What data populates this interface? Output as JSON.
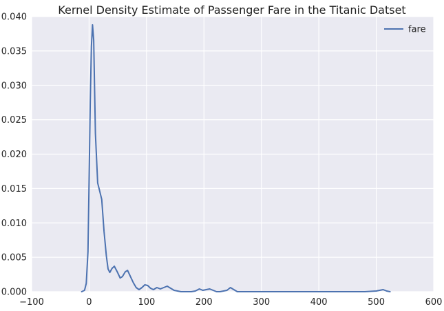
{
  "chart_data": {
    "type": "line",
    "title": "Kernel Density Estimate of Passenger Fare in the Titanic Datset",
    "xlabel": "",
    "ylabel": "",
    "xlim": [
      -100,
      600
    ],
    "ylim": [
      0,
      0.04
    ],
    "xticks": [
      -100,
      0,
      100,
      200,
      300,
      400,
      500,
      600
    ],
    "xtick_labels": [
      "−100",
      "0",
      "100",
      "200",
      "300",
      "400",
      "500",
      "600"
    ],
    "yticks": [
      0,
      0.005,
      0.01,
      0.015,
      0.02,
      0.025,
      0.03,
      0.035,
      0.04
    ],
    "ytick_labels": [
      "0.000",
      "0.005",
      "0.010",
      "0.015",
      "0.020",
      "0.025",
      "0.030",
      "0.035",
      "0.040"
    ],
    "grid": true,
    "legend_position": "top-right",
    "series": [
      {
        "name": "fare",
        "color": "#4c72b0",
        "x": [
          -13,
          -8,
          -5,
          -2,
          0,
          2,
          4,
          6,
          8,
          11,
          15,
          18,
          22,
          26,
          30,
          33,
          36,
          40,
          44,
          49,
          54,
          58,
          63,
          67,
          72,
          77,
          82,
          87,
          92,
          97,
          102,
          107,
          112,
          118,
          124,
          130,
          136,
          142,
          148,
          154,
          160,
          166,
          172,
          178,
          185,
          192,
          198,
          204,
          210,
          216,
          222,
          228,
          234,
          240,
          246,
          252,
          258,
          264,
          270,
          276,
          282,
          290,
          300,
          320,
          340,
          360,
          380,
          400,
          420,
          440,
          460,
          480,
          500,
          506,
          512,
          518,
          524
        ],
        "y": [
          0.0,
          0.0002,
          0.0012,
          0.0058,
          0.016,
          0.0275,
          0.0357,
          0.0388,
          0.0366,
          0.023,
          0.0158,
          0.0148,
          0.0134,
          0.0088,
          0.0052,
          0.0033,
          0.0028,
          0.0034,
          0.0037,
          0.0029,
          0.002,
          0.0022,
          0.0029,
          0.0031,
          0.0022,
          0.0013,
          0.0006,
          0.0003,
          0.0006,
          0.001,
          0.0009,
          0.0005,
          0.0003,
          0.0006,
          0.0004,
          0.0006,
          0.0008,
          0.0005,
          0.0002,
          0.0001,
          0.0,
          0.0,
          0.0,
          0.0,
          0.0001,
          0.0004,
          0.0002,
          0.0003,
          0.0004,
          0.0002,
          0.0,
          0.0,
          0.0001,
          0.0002,
          0.0006,
          0.0003,
          0.0,
          0.0,
          0.0,
          0.0,
          0.0,
          0.0,
          0.0,
          0.0,
          0.0,
          0.0,
          0.0,
          0.0,
          0.0,
          0.0,
          0.0,
          0.0,
          0.0001,
          0.0002,
          0.0003,
          0.0001,
          0.0
        ]
      }
    ]
  },
  "style": {
    "plot_bg": "#eaeaf2",
    "grid_color": "#ffffff",
    "text_color": "#222222"
  }
}
